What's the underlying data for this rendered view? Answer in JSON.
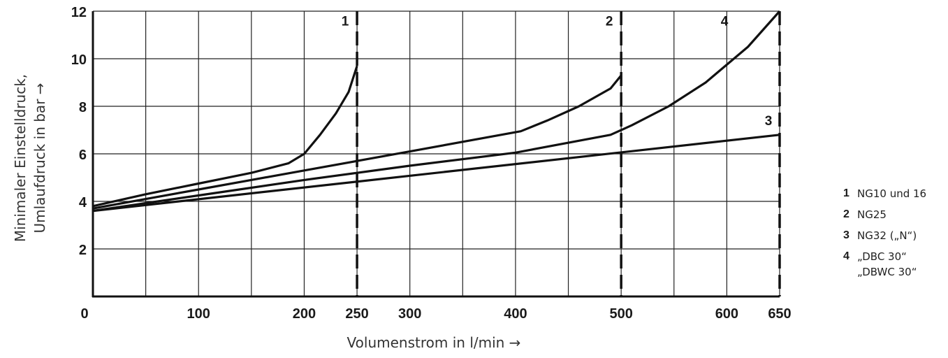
{
  "chart_data": {
    "type": "line",
    "xlabel": "Volumenstrom in l/min →",
    "ylabel_line1": "Minimaler Einstelldruck,",
    "ylabel_line2": "Umlaufdruck in bar →",
    "xlim": [
      0,
      650
    ],
    "ylim": [
      0,
      12
    ],
    "x_ticks": [
      0,
      100,
      200,
      250,
      300,
      400,
      500,
      600,
      650
    ],
    "y_ticks": [
      2,
      4,
      6,
      8,
      10,
      12
    ],
    "x_grid": [
      0,
      50,
      100,
      150,
      200,
      250,
      300,
      350,
      400,
      450,
      500,
      550,
      600,
      650
    ],
    "y_grid": [
      0,
      2,
      4,
      6,
      8,
      10,
      12
    ],
    "grid": true,
    "limit_lines": [
      {
        "x": 250,
        "label": "1"
      },
      {
        "x": 500,
        "label": "2"
      },
      {
        "x": 650,
        "label": "3"
      }
    ],
    "series": [
      {
        "name": "1",
        "label": "1",
        "x": [
          0,
          50,
          100,
          150,
          185,
          200,
          215,
          230,
          242,
          250
        ],
        "y": [
          3.8,
          4.3,
          4.75,
          5.2,
          5.6,
          6.0,
          6.8,
          7.7,
          8.6,
          9.7
        ]
      },
      {
        "name": "2",
        "label": "2",
        "x": [
          0,
          100,
          200,
          300,
          405,
          430,
          460,
          490,
          500
        ],
        "y": [
          3.7,
          4.5,
          5.3,
          6.1,
          6.95,
          7.4,
          8.0,
          8.75,
          9.3
        ]
      },
      {
        "name": "3",
        "label": "3",
        "x": [
          0,
          650
        ],
        "y": [
          3.6,
          6.8
        ]
      },
      {
        "name": "4",
        "label": "4",
        "x": [
          0,
          100,
          200,
          300,
          400,
          490,
          510,
          545,
          580,
          620,
          650
        ],
        "y": [
          3.6,
          4.25,
          4.9,
          5.5,
          6.05,
          6.8,
          7.2,
          8.0,
          9.0,
          10.5,
          12.0
        ]
      }
    ]
  },
  "legend": [
    {
      "num": "1",
      "text": "NG10 und 16"
    },
    {
      "num": "2",
      "text": "NG25"
    },
    {
      "num": "3",
      "text": "NG32 („N“)"
    },
    {
      "num": "4",
      "text": "„DBC 30“\n„DBWC 30“"
    }
  ]
}
